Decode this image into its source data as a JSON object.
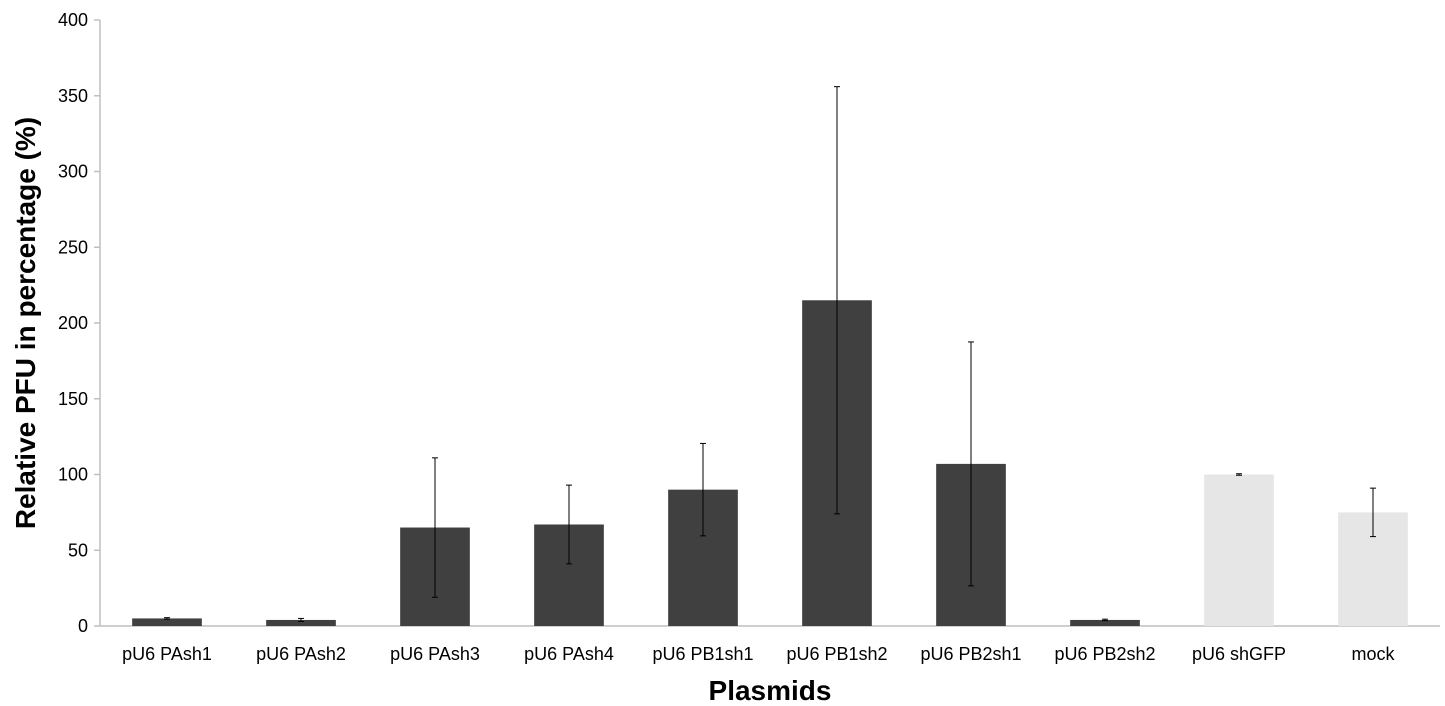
{
  "chart_data": {
    "type": "bar",
    "title": "",
    "xlabel": "Plasmids",
    "ylabel": "Relative PFU in percentage (%)",
    "ylim": [
      0,
      400
    ],
    "yticks": [
      0,
      50,
      100,
      150,
      200,
      250,
      300,
      350,
      400
    ],
    "grid": false,
    "legend": "none",
    "categories": [
      "pU6 PAsh1",
      "pU6 PAsh2",
      "pU6 PAsh3",
      "pU6 PAsh4",
      "pU6 PB1sh1",
      "pU6 PB1sh2",
      "pU6 PB2sh1",
      "pU6 PB2sh2",
      "pU6 shGFP",
      "mock"
    ],
    "values": [
      5,
      4,
      65,
      67,
      90,
      215,
      107,
      4,
      100,
      75
    ],
    "error": [
      0.5,
      1,
      46,
      26,
      30.5,
      141,
      80.5,
      0.5,
      0.5,
      16
    ],
    "colors": [
      "#404040",
      "#404040",
      "#404040",
      "#404040",
      "#404040",
      "#404040",
      "#404040",
      "#404040",
      "#e6e6e6",
      "#e6e6e6"
    ]
  }
}
